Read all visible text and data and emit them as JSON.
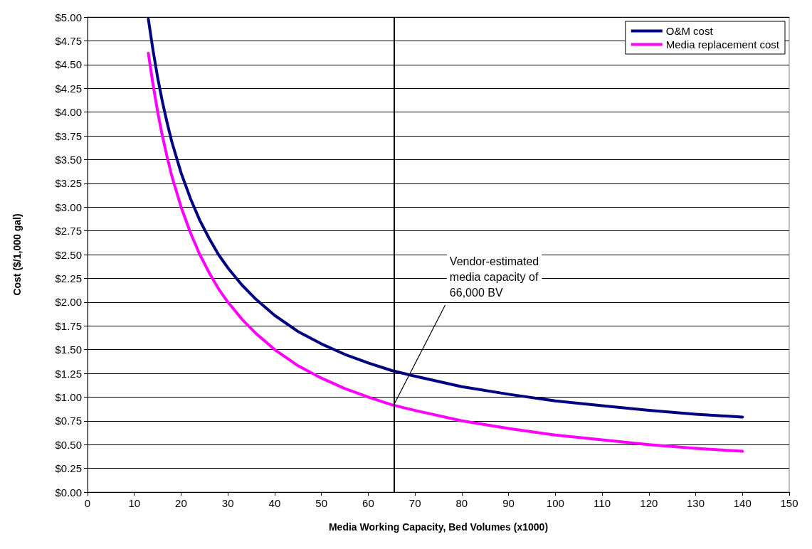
{
  "chart_data": {
    "type": "line",
    "xlabel": "Media Working Capacity, Bed Volumes (x1000)",
    "ylabel": "Cost ($/1,000 gal)",
    "x": [
      13,
      14,
      15,
      16,
      17,
      18,
      20,
      22,
      24,
      26,
      28,
      30,
      33,
      36,
      40,
      45,
      50,
      55,
      60,
      65,
      70,
      80,
      90,
      100,
      110,
      120,
      130,
      140
    ],
    "series": [
      {
        "name": "O&M cost",
        "color": "#000080",
        "values": [
          4.98,
          4.65,
          4.36,
          4.11,
          3.89,
          3.69,
          3.36,
          3.09,
          2.86,
          2.67,
          2.5,
          2.36,
          2.18,
          2.03,
          1.86,
          1.69,
          1.56,
          1.45,
          1.36,
          1.28,
          1.22,
          1.11,
          1.03,
          0.96,
          0.91,
          0.86,
          0.82,
          0.79
        ]
      },
      {
        "name": "Media replacement cost",
        "color": "#ff00ff",
        "values": [
          4.62,
          4.29,
          4.0,
          3.75,
          3.53,
          3.33,
          3.0,
          2.73,
          2.5,
          2.31,
          2.14,
          2.0,
          1.82,
          1.67,
          1.5,
          1.33,
          1.2,
          1.09,
          1.0,
          0.92,
          0.86,
          0.75,
          0.67,
          0.6,
          0.55,
          0.5,
          0.46,
          0.43
        ]
      }
    ],
    "xlim": [
      0,
      150
    ],
    "xticks": [
      0,
      10,
      20,
      30,
      40,
      50,
      60,
      70,
      80,
      90,
      100,
      110,
      120,
      130,
      140,
      150
    ],
    "ylim": [
      0,
      5
    ],
    "yticks": [
      {
        "value": 0,
        "label": "$0.00"
      },
      {
        "value": 0.25,
        "label": "$0.25"
      },
      {
        "value": 0.5,
        "label": "$0.50"
      },
      {
        "value": 0.75,
        "label": "$0.75"
      },
      {
        "value": 1,
        "label": "$1.00"
      },
      {
        "value": 1.25,
        "label": "$1.25"
      },
      {
        "value": 1.5,
        "label": "$1.50"
      },
      {
        "value": 1.75,
        "label": "$1.75"
      },
      {
        "value": 2,
        "label": "$2.00"
      },
      {
        "value": 2.25,
        "label": "$2.25"
      },
      {
        "value": 2.5,
        "label": "$2.50"
      },
      {
        "value": 2.75,
        "label": "$2.75"
      },
      {
        "value": 3,
        "label": "$3.00"
      },
      {
        "value": 3.25,
        "label": "$3.25"
      },
      {
        "value": 3.5,
        "label": "$3.50"
      },
      {
        "value": 3.75,
        "label": "$3.75"
      },
      {
        "value": 4,
        "label": "$4.00"
      },
      {
        "value": 4.25,
        "label": "$4.25"
      },
      {
        "value": 4.5,
        "label": "$4.50"
      },
      {
        "value": 4.75,
        "label": "$4.75"
      },
      {
        "value": 5,
        "label": "$5.00"
      }
    ],
    "ref_lines": [
      {
        "axis": "x",
        "value": 65.5,
        "color": "#000000"
      }
    ],
    "annotations": [
      {
        "text": "Vendor-estimated\nmedia capacity of\n66,000 BV",
        "x": 65.5,
        "y": 0.92
      }
    ],
    "grid": "y",
    "legend": "top right",
    "marker": "none",
    "line_style": "solid"
  }
}
